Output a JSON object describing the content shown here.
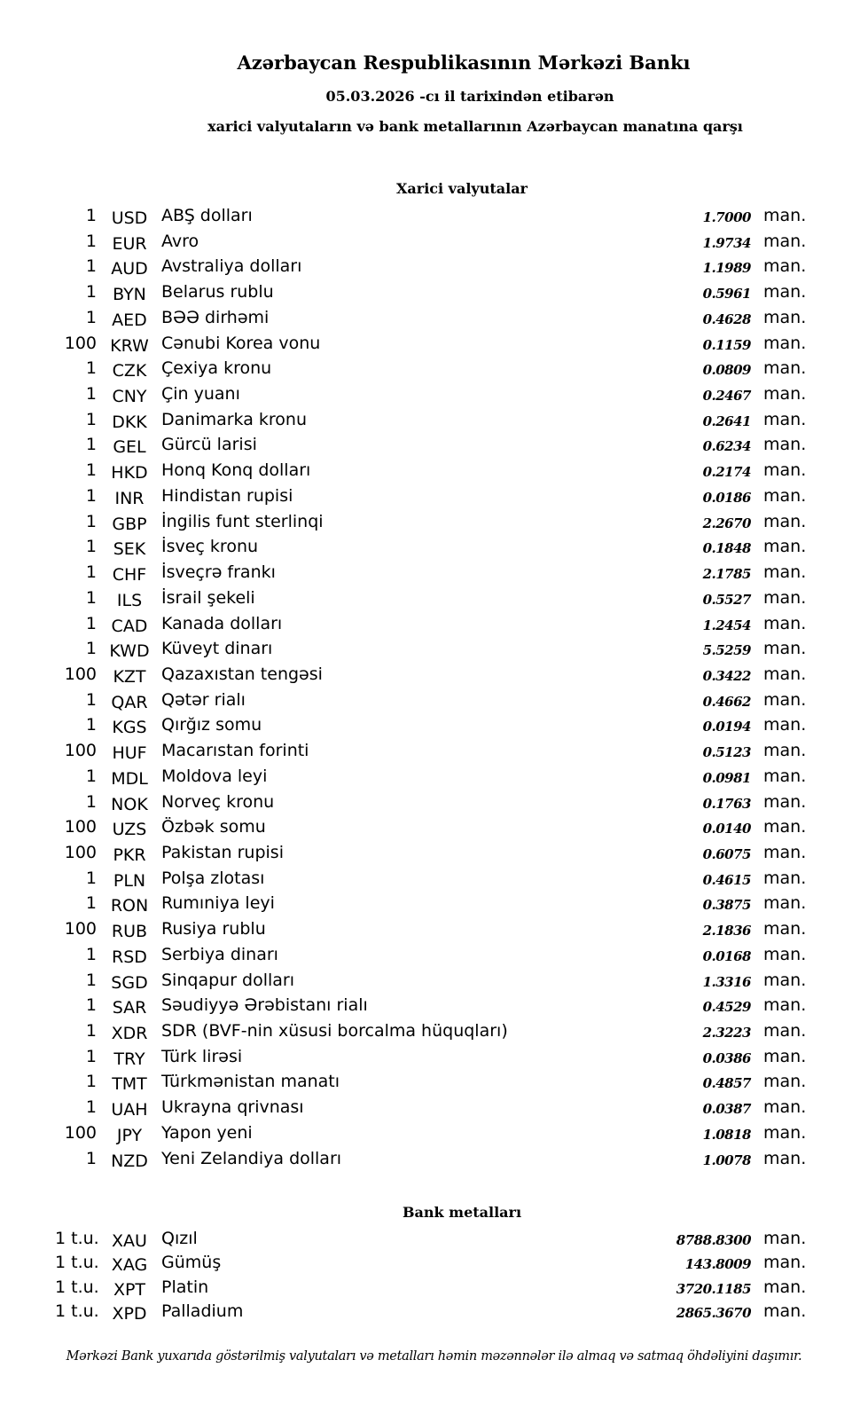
{
  "header": {
    "title": "Azərbaycan Respublikasının Mərkəzi Bankı",
    "date_line": "05.03.2026 -cı il tarixindən etibarən",
    "description": "xarici valyutaların və bank metallarının Azərbaycan manatına qarşı"
  },
  "currencies": {
    "heading": "Xarici valyutalar",
    "rows": [
      {
        "amount": "1",
        "code": "USD",
        "name": "ABŞ dolları",
        "rate": "1.7000",
        "unit": "man."
      },
      {
        "amount": "1",
        "code": "EUR",
        "name": "Avro",
        "rate": "1.9734",
        "unit": "man."
      },
      {
        "amount": "1",
        "code": "AUD",
        "name": "Avstraliya dolları",
        "rate": "1.1989",
        "unit": "man."
      },
      {
        "amount": "1",
        "code": "BYN",
        "name": "Belarus rublu",
        "rate": "0.5961",
        "unit": "man."
      },
      {
        "amount": "1",
        "code": "AED",
        "name": "BƏƏ dirhəmi",
        "rate": "0.4628",
        "unit": "man."
      },
      {
        "amount": "100",
        "code": "KRW",
        "name": "Cənubi Korea vonu",
        "rate": "0.1159",
        "unit": "man."
      },
      {
        "amount": "1",
        "code": "CZK",
        "name": "Çexiya kronu",
        "rate": "0.0809",
        "unit": "man."
      },
      {
        "amount": "1",
        "code": "CNY",
        "name": "Çin yuanı",
        "rate": "0.2467",
        "unit": "man."
      },
      {
        "amount": "1",
        "code": "DKK",
        "name": "Danimarka kronu",
        "rate": "0.2641",
        "unit": "man."
      },
      {
        "amount": "1",
        "code": "GEL",
        "name": "Gürcü larisi",
        "rate": "0.6234",
        "unit": "man."
      },
      {
        "amount": "1",
        "code": "HKD",
        "name": "Honq Konq dolları",
        "rate": "0.2174",
        "unit": "man."
      },
      {
        "amount": "1",
        "code": "INR",
        "name": "Hindistan rupisi",
        "rate": "0.0186",
        "unit": "man."
      },
      {
        "amount": "1",
        "code": "GBP",
        "name": "İngilis funt sterlinqi",
        "rate": "2.2670",
        "unit": "man."
      },
      {
        "amount": "1",
        "code": "SEK",
        "name": "İsveç kronu",
        "rate": "0.1848",
        "unit": "man."
      },
      {
        "amount": "1",
        "code": "CHF",
        "name": "İsveçrə frankı",
        "rate": "2.1785",
        "unit": "man."
      },
      {
        "amount": "1",
        "code": "ILS",
        "name": "İsrail şekeli",
        "rate": "0.5527",
        "unit": "man."
      },
      {
        "amount": "1",
        "code": "CAD",
        "name": "Kanada dolları",
        "rate": "1.2454",
        "unit": "man."
      },
      {
        "amount": "1",
        "code": "KWD",
        "name": "Küveyt dinarı",
        "rate": "5.5259",
        "unit": "man."
      },
      {
        "amount": "100",
        "code": "KZT",
        "name": "Qazaxıstan tengəsi",
        "rate": "0.3422",
        "unit": "man."
      },
      {
        "amount": "1",
        "code": "QAR",
        "name": "Qətər rialı",
        "rate": "0.4662",
        "unit": "man."
      },
      {
        "amount": "1",
        "code": "KGS",
        "name": "Qırğız somu",
        "rate": "0.0194",
        "unit": "man."
      },
      {
        "amount": "100",
        "code": "HUF",
        "name": "Macarıstan forinti",
        "rate": "0.5123",
        "unit": "man."
      },
      {
        "amount": "1",
        "code": "MDL",
        "name": "Moldova leyi",
        "rate": "0.0981",
        "unit": "man."
      },
      {
        "amount": "1",
        "code": "NOK",
        "name": "Norveç kronu",
        "rate": "0.1763",
        "unit": "man."
      },
      {
        "amount": "100",
        "code": "UZS",
        "name": "Özbək somu",
        "rate": "0.0140",
        "unit": "man."
      },
      {
        "amount": "100",
        "code": "PKR",
        "name": "Pakistan rupisi",
        "rate": "0.6075",
        "unit": "man."
      },
      {
        "amount": "1",
        "code": "PLN",
        "name": "Polşa zlotası",
        "rate": "0.4615",
        "unit": "man."
      },
      {
        "amount": "1",
        "code": "RON",
        "name": "Rumıniya leyi",
        "rate": "0.3875",
        "unit": "man."
      },
      {
        "amount": "100",
        "code": "RUB",
        "name": "Rusiya rublu",
        "rate": "2.1836",
        "unit": "man."
      },
      {
        "amount": "1",
        "code": "RSD",
        "name": "Serbiya dinarı",
        "rate": "0.0168",
        "unit": "man."
      },
      {
        "amount": "1",
        "code": "SGD",
        "name": "Sinqapur dolları",
        "rate": "1.3316",
        "unit": "man."
      },
      {
        "amount": "1",
        "code": "SAR",
        "name": "Səudiyyə Ərəbistanı rialı",
        "rate": "0.4529",
        "unit": "man."
      },
      {
        "amount": "1",
        "code": "XDR",
        "name": "SDR (BVF-nin xüsusi borcalma hüquqları)",
        "rate": "2.3223",
        "unit": "man."
      },
      {
        "amount": "1",
        "code": "TRY",
        "name": "Türk lirəsi",
        "rate": "0.0386",
        "unit": "man."
      },
      {
        "amount": "1",
        "code": "TMT",
        "name": "Türkmənistan manatı",
        "rate": "0.4857",
        "unit": "man."
      },
      {
        "amount": "1",
        "code": "UAH",
        "name": "Ukrayna qrivnası",
        "rate": "0.0387",
        "unit": "man."
      },
      {
        "amount": "100",
        "code": "JPY",
        "name": "Yapon yeni",
        "rate": "1.0818",
        "unit": "man."
      },
      {
        "amount": "1",
        "code": "NZD",
        "name": "Yeni Zelandiya dolları",
        "rate": "1.0078",
        "unit": "man."
      }
    ]
  },
  "metals": {
    "heading": "Bank metalları",
    "rows": [
      {
        "amount": "1 t.u.",
        "code": "XAU",
        "name": "Qızıl",
        "rate": "8788.8300",
        "unit": "man."
      },
      {
        "amount": "1 t.u.",
        "code": "XAG",
        "name": "Gümüş",
        "rate": "143.8009",
        "unit": "man."
      },
      {
        "amount": "1 t.u.",
        "code": "XPT",
        "name": "Platin",
        "rate": "3720.1185",
        "unit": "man."
      },
      {
        "amount": "1 t.u.",
        "code": "XPD",
        "name": "Palladium",
        "rate": "2865.3670",
        "unit": "man."
      }
    ]
  },
  "footer": "Mərkəzi Bank yuxarıda göstərilmiş valyutaları və metalları həmin məzənnələr ilə almaq və satmaq öhdəliyini daşımır."
}
